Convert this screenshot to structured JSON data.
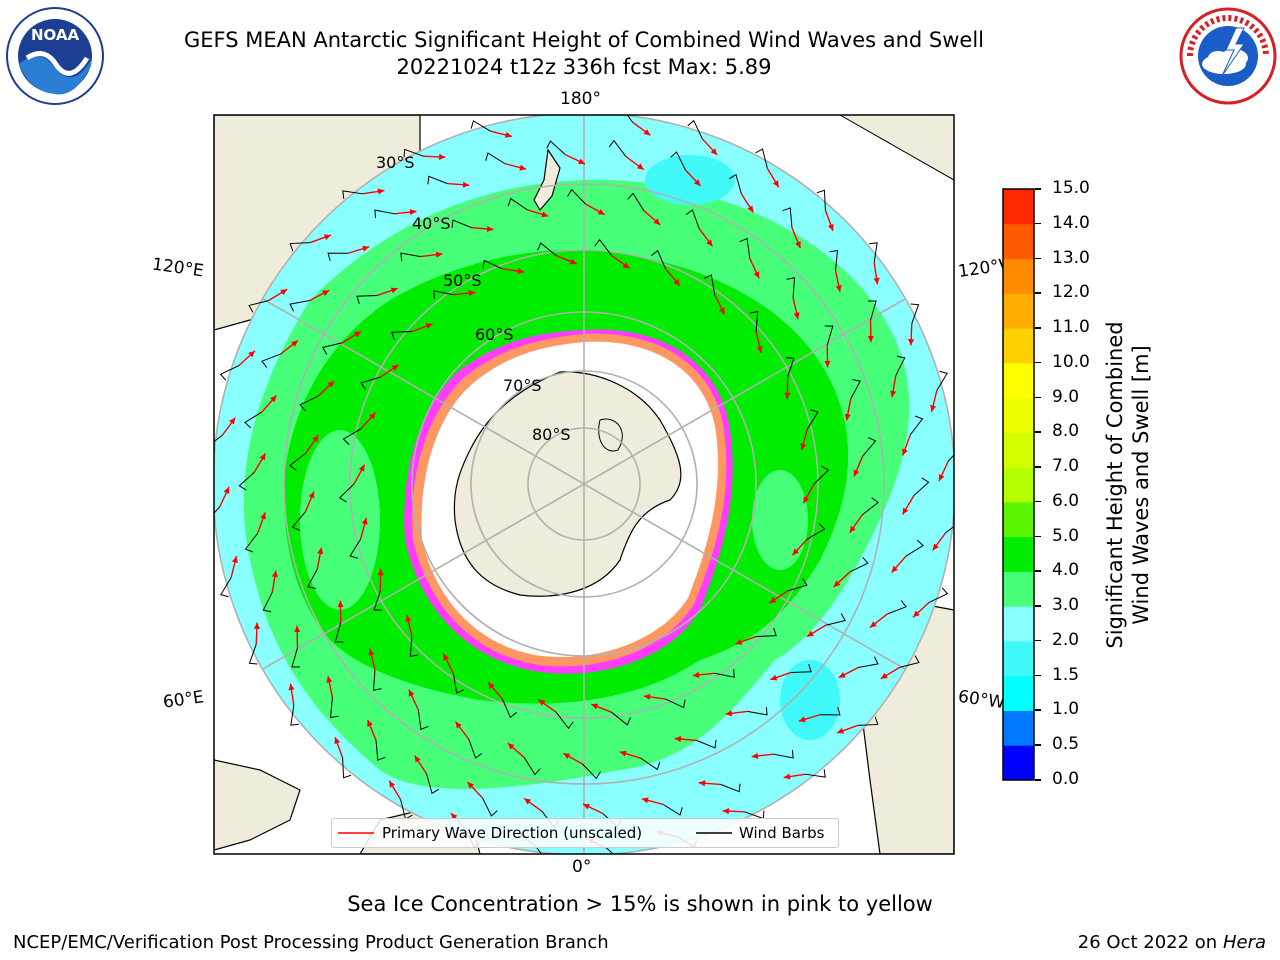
{
  "title": {
    "line1": "GEFS MEAN Antarctic Significant Height of Combined Wind Waves and Swell",
    "line2": "20221024 t12z 336h fcst   Max: 5.89"
  },
  "map": {
    "projection": "south-polar-stereographic",
    "longitude_labels": {
      "top": "180°",
      "bottom": "0°",
      "left_upper": "120°E",
      "left_lower": "60°E",
      "right_upper": "120°W",
      "right_lower": "60°W"
    },
    "latitude_labels": [
      "30°S",
      "40°S",
      "50°S",
      "60°S",
      "70°S",
      "80°S"
    ],
    "colors": {
      "land": "#efecdc",
      "ice_free_antarctic_zone": "#ffffff",
      "band_1_5_2_0": "#41f9f9",
      "band_2_0_3_0": "#8affff",
      "band_3_0_4_0": "#48ff7a",
      "band_4_0_5_0": "#00ec00",
      "band_5_0_6_0": "#5bf500",
      "sea_ice_pink": "#ff3cff",
      "sea_ice_orange": "#ffae3c",
      "wave_arrow": "#ff0000",
      "wind_barb": "#000000"
    }
  },
  "legend": {
    "wave_direction": "Primary Wave Direction (unscaled)",
    "wind_barbs": "Wind Barbs"
  },
  "colorbar": {
    "title_line1": "Significant Height of Combined",
    "title_line2": "Wind Waves and Swell [m]",
    "ticks": [
      "0.0",
      "0.5",
      "1.0",
      "1.5",
      "2.0",
      "3.0",
      "4.0",
      "5.0",
      "6.0",
      "7.0",
      "8.0",
      "9.0",
      "10.0",
      "11.0",
      "12.0",
      "13.0",
      "14.0",
      "15.0"
    ],
    "colors": [
      "#0000ff",
      "#0078ff",
      "#00ffff",
      "#41f9f9",
      "#8affff",
      "#48ff7a",
      "#00ec00",
      "#5bf500",
      "#b4ff00",
      "#d4ff00",
      "#f0ff00",
      "#ffff00",
      "#ffd000",
      "#ffae00",
      "#ff8c00",
      "#ff5a00",
      "#ff2800",
      "#ff0000"
    ]
  },
  "caption": "Sea Ice Concentration > 15% is shown in pink to yellow",
  "footer": {
    "left": "NCEP/EMC/Verification Post Processing Product Generation Branch",
    "right_prefix": "26 Oct 2022 on ",
    "right_host": "Hera"
  },
  "logos": {
    "left": "NOAA",
    "left_ring_text": "NATIONAL OCEANIC AND ATMOSPHERIC ADMINISTRATION · U.S. DEPARTMENT OF COMMERCE",
    "right_ring_text": "NATIONAL WEATHER SERVICE"
  }
}
